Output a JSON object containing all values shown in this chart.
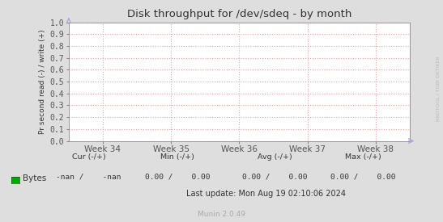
{
  "title": "Disk throughput for /dev/sdeq - by month",
  "ylabel": "Pr second read (-) / write (+)",
  "xtick_labels": [
    "Week 34",
    "Week 35",
    "Week 36",
    "Week 37",
    "Week 38"
  ],
  "ylim": [
    0.0,
    1.0
  ],
  "yticks": [
    0.0,
    0.1,
    0.2,
    0.3,
    0.4,
    0.5,
    0.6,
    0.7,
    0.8,
    0.9,
    1.0
  ],
  "bg_color": "#dedede",
  "plot_bg_color": "#ffffff",
  "grid_color": "#f0a0a0",
  "title_color": "#333333",
  "label_color": "#333333",
  "tick_color": "#555555",
  "legend_color": "#00aa00",
  "watermark": "RRDTOOL / TOBI OETIKER",
  "footer_text": "Munin 2.0.49",
  "last_update": "Last update: Mon Aug 19 02:10:06 2024",
  "arrow_color": "#aaaadd",
  "cur_header": "Cur (-/+)",
  "min_header": "Min (-/+)",
  "avg_header": "Avg (-/+)",
  "max_header": "Max (-/+)",
  "cur_val": "-nan /    -nan",
  "min_val": "0.00 /    0.00",
  "avg_val": "0.00 /    0.00",
  "max_val": "0.00 /    0.00"
}
